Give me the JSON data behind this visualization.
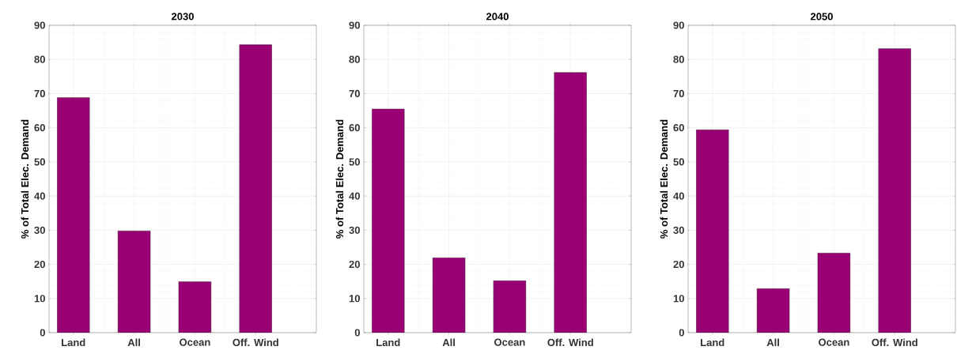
{
  "chart_data": [
    {
      "type": "bar",
      "title": "2030",
      "ylabel": "% of Total Elec. Demand",
      "categories": [
        "Land",
        "All",
        "Ocean",
        "Off. Wind"
      ],
      "values": [
        68.8,
        29.8,
        14.9,
        84.3
      ],
      "color": "#990073",
      "ylim": [
        0,
        90
      ],
      "yticks": [
        0,
        10,
        20,
        30,
        40,
        50,
        60,
        70,
        80,
        90
      ],
      "grid": true
    },
    {
      "type": "bar",
      "title": "2040",
      "ylabel": "% of Total Elec. Demand",
      "categories": [
        "Land",
        "All",
        "Ocean",
        "Off. Wind"
      ],
      "values": [
        65.5,
        21.9,
        15.2,
        76.2
      ],
      "color": "#990073",
      "ylim": [
        0,
        90
      ],
      "yticks": [
        0,
        10,
        20,
        30,
        40,
        50,
        60,
        70,
        80,
        90
      ],
      "grid": true
    },
    {
      "type": "bar",
      "title": "2050",
      "ylabel": "% of Total Elec. Demand",
      "categories": [
        "Land",
        "All",
        "Ocean",
        "Off. Wind"
      ],
      "values": [
        59.4,
        12.9,
        23.3,
        83.2
      ],
      "color": "#990073",
      "ylim": [
        0,
        90
      ],
      "yticks": [
        0,
        10,
        20,
        30,
        40,
        50,
        60,
        70,
        80,
        90
      ],
      "grid": true
    }
  ]
}
